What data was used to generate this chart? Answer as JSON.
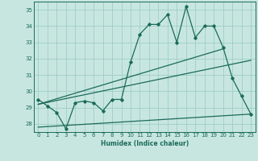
{
  "xlabel": "Humidex (Indice chaleur)",
  "xlim": [
    -0.5,
    23.5
  ],
  "ylim": [
    27.5,
    35.5
  ],
  "yticks": [
    28,
    29,
    30,
    31,
    32,
    33,
    34,
    35
  ],
  "xticks": [
    0,
    1,
    2,
    3,
    4,
    5,
    6,
    7,
    8,
    9,
    10,
    11,
    12,
    13,
    14,
    15,
    16,
    17,
    18,
    19,
    20,
    21,
    22,
    23
  ],
  "background_color": "#c8e6e0",
  "grid_color": "#9ecec8",
  "line_color": "#1a6b5a",
  "line1": [
    29.5,
    29.1,
    28.7,
    27.7,
    29.3,
    29.4,
    29.3,
    28.8,
    29.5,
    29.5,
    31.8,
    33.5,
    34.1,
    34.1,
    34.7,
    33.0,
    35.2,
    33.3,
    34.0,
    34.0,
    32.7,
    30.8,
    29.7,
    28.6
  ],
  "trend1_x": [
    0,
    23
  ],
  "trend1_y": [
    29.2,
    31.9
  ],
  "trend2_x": [
    0,
    20
  ],
  "trend2_y": [
    29.2,
    32.6
  ],
  "trend3_x": [
    0,
    23
  ],
  "trend3_y": [
    27.8,
    28.6
  ]
}
